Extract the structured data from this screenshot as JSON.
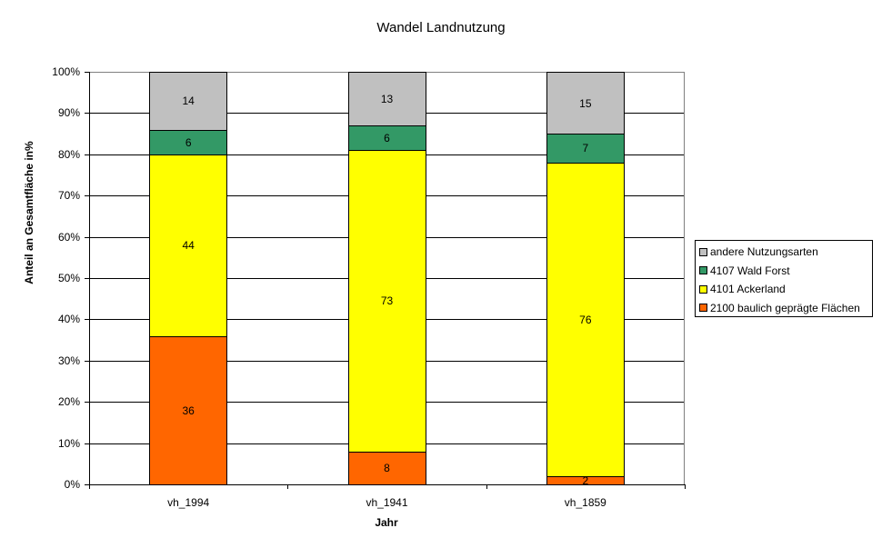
{
  "chart_data": {
    "type": "bar",
    "stacked": "percent",
    "title": "Wandel Landnutzung",
    "xlabel": "Jahr",
    "ylabel": "Anteil an Gesamtfläche in%",
    "categories": [
      "vh_1994",
      "vh_1941",
      "vh_1859"
    ],
    "series": [
      {
        "name": "2100 baulich geprägte Flächen",
        "color": "#FF6600",
        "values": [
          36,
          8,
          2
        ]
      },
      {
        "name": "4101 Ackerland",
        "color": "#FFFF00",
        "values": [
          44,
          73,
          76
        ]
      },
      {
        "name": "4107 Wald Forst",
        "color": "#339966",
        "values": [
          6,
          6,
          7
        ]
      },
      {
        "name": "andere Nutzungsarten",
        "color": "#C0C0C0",
        "values": [
          14,
          13,
          15
        ]
      }
    ],
    "yticks": [
      "0%",
      "10%",
      "20%",
      "30%",
      "40%",
      "50%",
      "60%",
      "70%",
      "80%",
      "90%",
      "100%"
    ],
    "ylim": [
      0,
      100
    ],
    "grid": true,
    "legend_position": "right",
    "legend_order": [
      "andere Nutzungsarten",
      "4107 Wald Forst",
      "4101 Ackerland",
      "2100 baulich geprägte Flächen"
    ]
  }
}
